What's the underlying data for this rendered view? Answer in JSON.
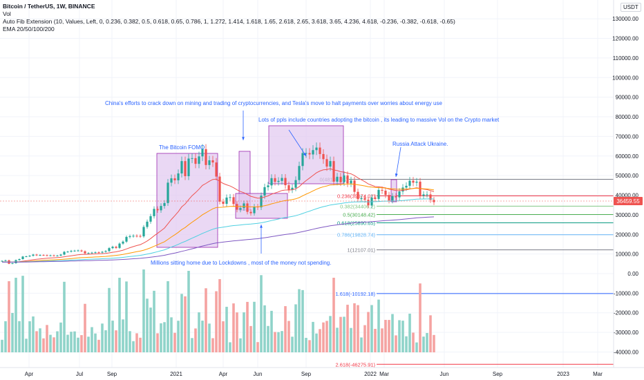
{
  "header": {
    "title": "Bitcoin / TetherUS, 1W, BINANCE",
    "vol": "Vol",
    "fib": "Auto Fib Extension (10, Values, Left, 0, 0.236, 0.382, 0.5, 0.618, 0.65, 0.786, 1, 1.272, 1.414, 1.618, 1.65, 2.618, 2.65, 3.618, 3.65, 4.236, 4.618, -0.236, -0.382, -0.618, -0.65)",
    "ema": "EMA 20/50/100/200"
  },
  "currency_button": "USDT",
  "colors": {
    "up": "#26a69a",
    "down": "#ef5350",
    "vol_up": "#8fd3c9",
    "vol_down": "#f5a3a1",
    "annotation_text": "#2962ff",
    "annotation_box_fill": "#e1c8f0",
    "annotation_box_stroke": "#9c27b0",
    "ema20": "#ef5350",
    "ema50": "#ff9800",
    "ema100": "#4dd0e1",
    "ema200": "#7e57c2",
    "price_badge": "#ef5350"
  },
  "axes": {
    "y_ticks": [
      "130000.00",
      "120000.00",
      "110000.00",
      "100000.00",
      "90000.00",
      "80000.00",
      "70000.00",
      "60000.00",
      "50000.00",
      "40000.00",
      "30000.00",
      "20000.00",
      "10000.00",
      "0.00",
      "-10000.00",
      "-20000.00",
      "-30000.00",
      "-40000.00"
    ],
    "x_ticks": [
      "Apr",
      "Jul",
      "Sep",
      "2021",
      "Apr",
      "Jun",
      "Sep",
      "2022",
      "Mar",
      "Jun",
      "Sep",
      "2023",
      "Mar"
    ]
  },
  "current_price": "36459.55",
  "fib_levels": [
    {
      "label": "0(48109.84)",
      "value": 48109.84,
      "color": "#787b86"
    },
    {
      "label": "0.236(39674.02)",
      "value": 39674.02,
      "color": "#f23645"
    },
    {
      "label": "0.382(34406.2)",
      "value": 34406.2,
      "color": "#81c784"
    },
    {
      "label": "0.5(30148.42)",
      "value": 30148.42,
      "color": "#4caf50"
    },
    {
      "label": "0.618(25890.65)",
      "value": 25890.65,
      "color": "#089981"
    },
    {
      "label": "0.786(19828.74)",
      "value": 19828.74,
      "color": "#64b5f6"
    },
    {
      "label": "1(12107.01)",
      "value": 12107.01,
      "color": "#787b86"
    },
    {
      "label": "1.618(-10192.18)",
      "value": -10192.18,
      "color": "#2962ff"
    },
    {
      "label": "2.618(-46275.91)",
      "value": -46275.91,
      "color": "#f23645"
    }
  ],
  "annotations": {
    "china": "China's efforts to crack down on mining and trading of cryptocurrencies, and Tesla's move to halt payments over worries about energy use",
    "fomo": "The Bitcoin FOMO",
    "adoption": "Lots of ppls include countries adopting the bitcoin , its leading to massive Vol on the Crypto market",
    "russia": "Russia Attack Ukraine.",
    "lockdown": "Millions sitting home due to Lockdowns , most of the money not spending."
  },
  "chart_data": {
    "type": "candlestick",
    "symbol": "Bitcoin / TetherUS",
    "interval": "1W",
    "exchange": "BINANCE",
    "ylim": [
      -47000,
      134000
    ],
    "weekly_close_approx": [
      6500,
      6800,
      5000,
      5300,
      6900,
      7400,
      8700,
      8800,
      9100,
      9700,
      9300,
      9500,
      9400,
      9200,
      9300,
      9100,
      9200,
      9700,
      11100,
      11200,
      11600,
      11700,
      11800,
      11400,
      10300,
      10500,
      10700,
      10900,
      10700,
      11100,
      11500,
      13000,
      13700,
      13100,
      15300,
      16300,
      18700,
      19100,
      19300,
      19200,
      19000,
      23800,
      26500,
      29300,
      33000,
      32300,
      34500,
      36000,
      46400,
      48600,
      47600,
      51100,
      57400,
      49700,
      58700,
      58900,
      56000,
      59800,
      63500,
      55400,
      57800,
      56700,
      49500,
      36700,
      35600,
      38800,
      39000,
      35500,
      32600,
      33400,
      35800,
      31500,
      30800,
      34200,
      33800,
      39800,
      44100,
      45000,
      48700,
      46800,
      47300,
      48800,
      45100,
      42800,
      43800,
      47700,
      54900,
      61500,
      61500,
      60800,
      63000,
      64300,
      61000,
      58400,
      54600,
      57400,
      46900,
      49400,
      46600,
      50100,
      46000,
      47500,
      41700,
      38000,
      38500,
      37700,
      34800,
      38800,
      38100,
      42700,
      42300,
      40100,
      37300,
      39500,
      38900,
      41900,
      43900,
      44800,
      47400,
      46400,
      46900,
      39700,
      40400,
      40400,
      37600,
      36459.55
    ],
    "ema_last_approx": {
      "EMA20": 41500,
      "EMA50": 40100,
      "EMA100": 37800,
      "EMA200": 25500
    }
  }
}
